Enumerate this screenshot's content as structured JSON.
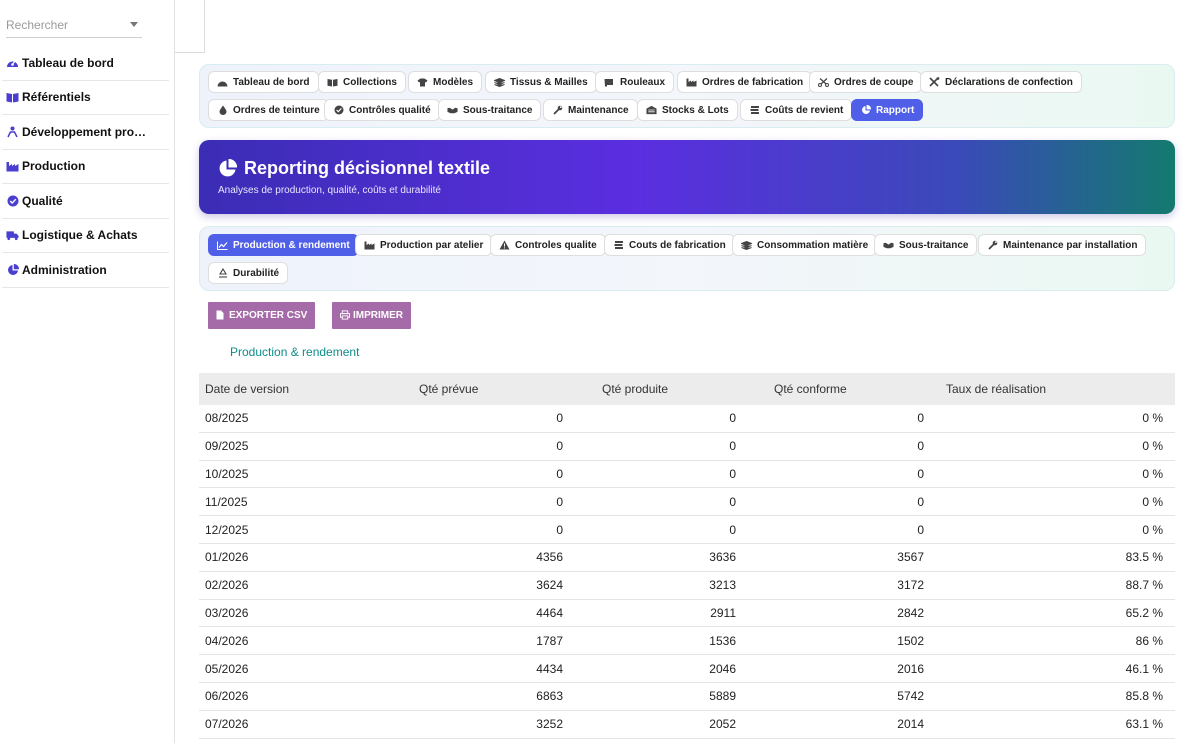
{
  "sidebar": {
    "search_placeholder": "Rechercher",
    "items": [
      {
        "label": "Tableau de bord",
        "icon": "gauge-icon"
      },
      {
        "label": "Référentiels",
        "icon": "book-icon"
      },
      {
        "label": "Développement produit",
        "icon": "people-icon"
      },
      {
        "label": "Production",
        "icon": "factory-icon"
      },
      {
        "label": "Qualité",
        "icon": "check-circle-icon"
      },
      {
        "label": "Logistique & Achats",
        "icon": "truck-icon"
      },
      {
        "label": "Administration",
        "icon": "pie-icon"
      }
    ]
  },
  "nav": {
    "tabs": [
      {
        "label": "Tableau de bord"
      },
      {
        "label": "Collections"
      },
      {
        "label": "Modèles"
      },
      {
        "label": "Tissus & Mailles"
      },
      {
        "label": "Rouleaux"
      },
      {
        "label": "Ordres de fabrication"
      },
      {
        "label": "Ordres de coupe"
      },
      {
        "label": "Déclarations de confection"
      },
      {
        "label": "Ordres de teinture"
      },
      {
        "label": "Contrôles qualité"
      },
      {
        "label": "Sous-traitance"
      },
      {
        "label": "Maintenance"
      },
      {
        "label": "Stocks & Lots"
      },
      {
        "label": "Coûts de revient"
      },
      {
        "label": "Rapport"
      }
    ],
    "active": "Rapport"
  },
  "banner": {
    "title": "Reporting décisionnel textile",
    "subtitle": "Analyses de production, qualité, coûts et durabilité"
  },
  "report_tabs": [
    {
      "label": "Production & rendement"
    },
    {
      "label": "Production par atelier"
    },
    {
      "label": "Controles qualite"
    },
    {
      "label": "Couts de fabrication"
    },
    {
      "label": "Consommation matière"
    },
    {
      "label": "Sous-traitance"
    },
    {
      "label": "Maintenance par installation"
    },
    {
      "label": "Durabilité"
    }
  ],
  "actions": {
    "export_csv": "EXPORTER CSV",
    "print": "IMPRIMER"
  },
  "section_title": "Production & rendement",
  "table": {
    "headers": [
      "Date de version",
      "Qté prévue",
      "Qté produite",
      "Qté conforme",
      "Taux de réalisation"
    ],
    "rows": [
      [
        "08/2025",
        "0",
        "0",
        "0",
        "0 %"
      ],
      [
        "09/2025",
        "0",
        "0",
        "0",
        "0 %"
      ],
      [
        "10/2025",
        "0",
        "0",
        "0",
        "0 %"
      ],
      [
        "11/2025",
        "0",
        "0",
        "0",
        "0 %"
      ],
      [
        "12/2025",
        "0",
        "0",
        "0",
        "0 %"
      ],
      [
        "01/2026",
        "4356",
        "3636",
        "3567",
        "83.5 %"
      ],
      [
        "02/2026",
        "3624",
        "3213",
        "3172",
        "88.7 %"
      ],
      [
        "03/2026",
        "4464",
        "2911",
        "2842",
        "65.2 %"
      ],
      [
        "04/2026",
        "1787",
        "1536",
        "1502",
        "86 %"
      ],
      [
        "05/2026",
        "4434",
        "2046",
        "2016",
        "46.1 %"
      ],
      [
        "06/2026",
        "6863",
        "5889",
        "5742",
        "85.8 %"
      ],
      [
        "07/2026",
        "3252",
        "2052",
        "2014",
        "63.1 %"
      ]
    ]
  },
  "colors": {
    "accent": "#4f5fe8",
    "sidebar_icon": "#4a3fd0",
    "button": "#a56aa8",
    "section_title": "#0f8a8a"
  }
}
